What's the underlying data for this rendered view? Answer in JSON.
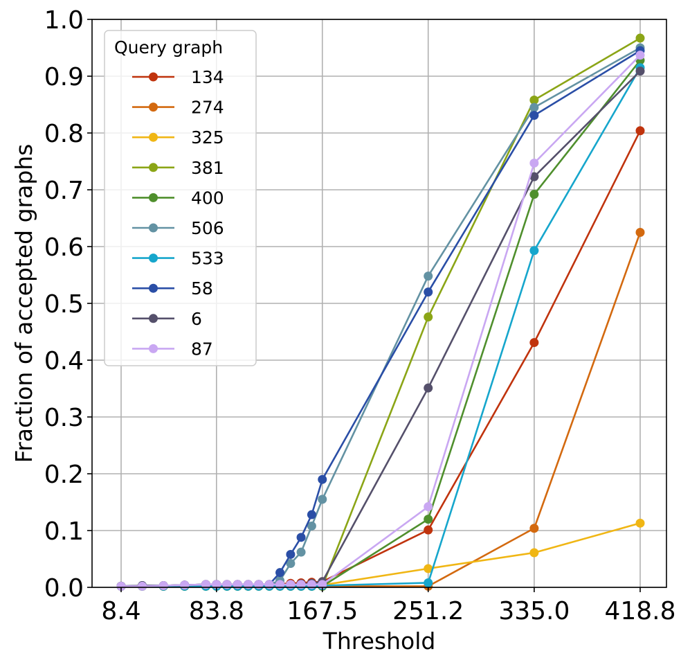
{
  "chart_data": {
    "type": "line",
    "title": "",
    "xlabel": "Threshold",
    "ylabel": "Fraction of accepted graphs",
    "xlim": [
      0,
      440
    ],
    "ylim": [
      0,
      1.0
    ],
    "x_ticks": [
      8.4,
      83.8,
      167.5,
      251.2,
      335.0,
      418.8
    ],
    "x_tick_labels": [
      "8.4",
      "83.8",
      "167.5",
      "251.2",
      "335.0",
      "418.8"
    ],
    "y_ticks": [
      0,
      0.1,
      0.2,
      0.3,
      0.4,
      0.5,
      0.6,
      0.7,
      0.8,
      0.9,
      1.0
    ],
    "y_tick_labels": [
      "0.0",
      "0.1",
      "0.2",
      "0.3",
      "0.4",
      "0.5",
      "0.6",
      "0.7",
      "0.8",
      "0.9",
      "1.0"
    ],
    "grid": true,
    "legend": {
      "title": "Query graph",
      "position": "top-left"
    },
    "x": [
      8.4,
      25.1,
      41.9,
      58.6,
      75.4,
      83.8,
      92.1,
      100.5,
      108.9,
      117.2,
      125.6,
      134.0,
      142.4,
      150.7,
      159.1,
      167.5,
      251.2,
      335.0,
      418.8
    ],
    "series": [
      {
        "name": "134",
        "color": "#c0330d",
        "values": [
          0.002,
          0.002,
          0.003,
          0.004,
          0.005,
          0.005,
          0.005,
          0.005,
          0.005,
          0.005,
          0.005,
          0.006,
          0.007,
          0.008,
          0.009,
          0.01,
          0.101,
          0.431,
          0.804
        ]
      },
      {
        "name": "274",
        "color": "#d3690f",
        "values": [
          0.002,
          0.002,
          0.002,
          0.002,
          0.002,
          0.002,
          0.002,
          0.002,
          0.002,
          0.002,
          0.002,
          0.002,
          0.002,
          0.002,
          0.002,
          0.002,
          0.002,
          0.104,
          0.625
        ]
      },
      {
        "name": "325",
        "color": "#f0b614",
        "values": [
          0.002,
          0.002,
          0.002,
          0.002,
          0.002,
          0.002,
          0.002,
          0.002,
          0.002,
          0.002,
          0.002,
          0.002,
          0.002,
          0.002,
          0.002,
          0.004,
          0.033,
          0.061,
          0.113
        ]
      },
      {
        "name": "381",
        "color": "#8ba516",
        "values": [
          0.002,
          0.002,
          0.002,
          0.002,
          0.002,
          0.002,
          0.002,
          0.002,
          0.002,
          0.002,
          0.002,
          0.002,
          0.002,
          0.002,
          0.002,
          0.002,
          0.476,
          0.858,
          0.967
        ]
      },
      {
        "name": "400",
        "color": "#4f8f2d",
        "values": [
          0.002,
          0.002,
          0.002,
          0.002,
          0.002,
          0.002,
          0.002,
          0.002,
          0.002,
          0.002,
          0.002,
          0.002,
          0.002,
          0.002,
          0.002,
          0.002,
          0.12,
          0.692,
          0.928
        ]
      },
      {
        "name": "506",
        "color": "#6392a3",
        "values": [
          0.002,
          0.003,
          0.003,
          0.004,
          0.005,
          0.005,
          0.005,
          0.005,
          0.005,
          0.005,
          0.005,
          0.012,
          0.042,
          0.062,
          0.108,
          0.155,
          0.548,
          0.845,
          0.95
        ]
      },
      {
        "name": "533",
        "color": "#16a6cc",
        "values": [
          0.002,
          0.002,
          0.002,
          0.002,
          0.002,
          0.002,
          0.002,
          0.002,
          0.002,
          0.002,
          0.002,
          0.002,
          0.002,
          0.002,
          0.002,
          0.003,
          0.008,
          0.593,
          0.915
        ]
      },
      {
        "name": "58",
        "color": "#2a4ea6",
        "values": [
          0.002,
          0.003,
          0.003,
          0.004,
          0.005,
          0.005,
          0.005,
          0.005,
          0.005,
          0.005,
          0.005,
          0.026,
          0.058,
          0.088,
          0.128,
          0.19,
          0.52,
          0.831,
          0.945
        ]
      },
      {
        "name": "6",
        "color": "#55506b",
        "values": [
          0.002,
          0.003,
          0.003,
          0.004,
          0.005,
          0.005,
          0.005,
          0.005,
          0.005,
          0.005,
          0.005,
          0.005,
          0.005,
          0.006,
          0.007,
          0.01,
          0.351,
          0.723,
          0.909
        ]
      },
      {
        "name": "87",
        "color": "#c9a7f2",
        "values": [
          0.002,
          0.002,
          0.003,
          0.004,
          0.005,
          0.005,
          0.005,
          0.005,
          0.005,
          0.005,
          0.005,
          0.005,
          0.005,
          0.005,
          0.005,
          0.005,
          0.142,
          0.747,
          0.937
        ]
      }
    ]
  }
}
